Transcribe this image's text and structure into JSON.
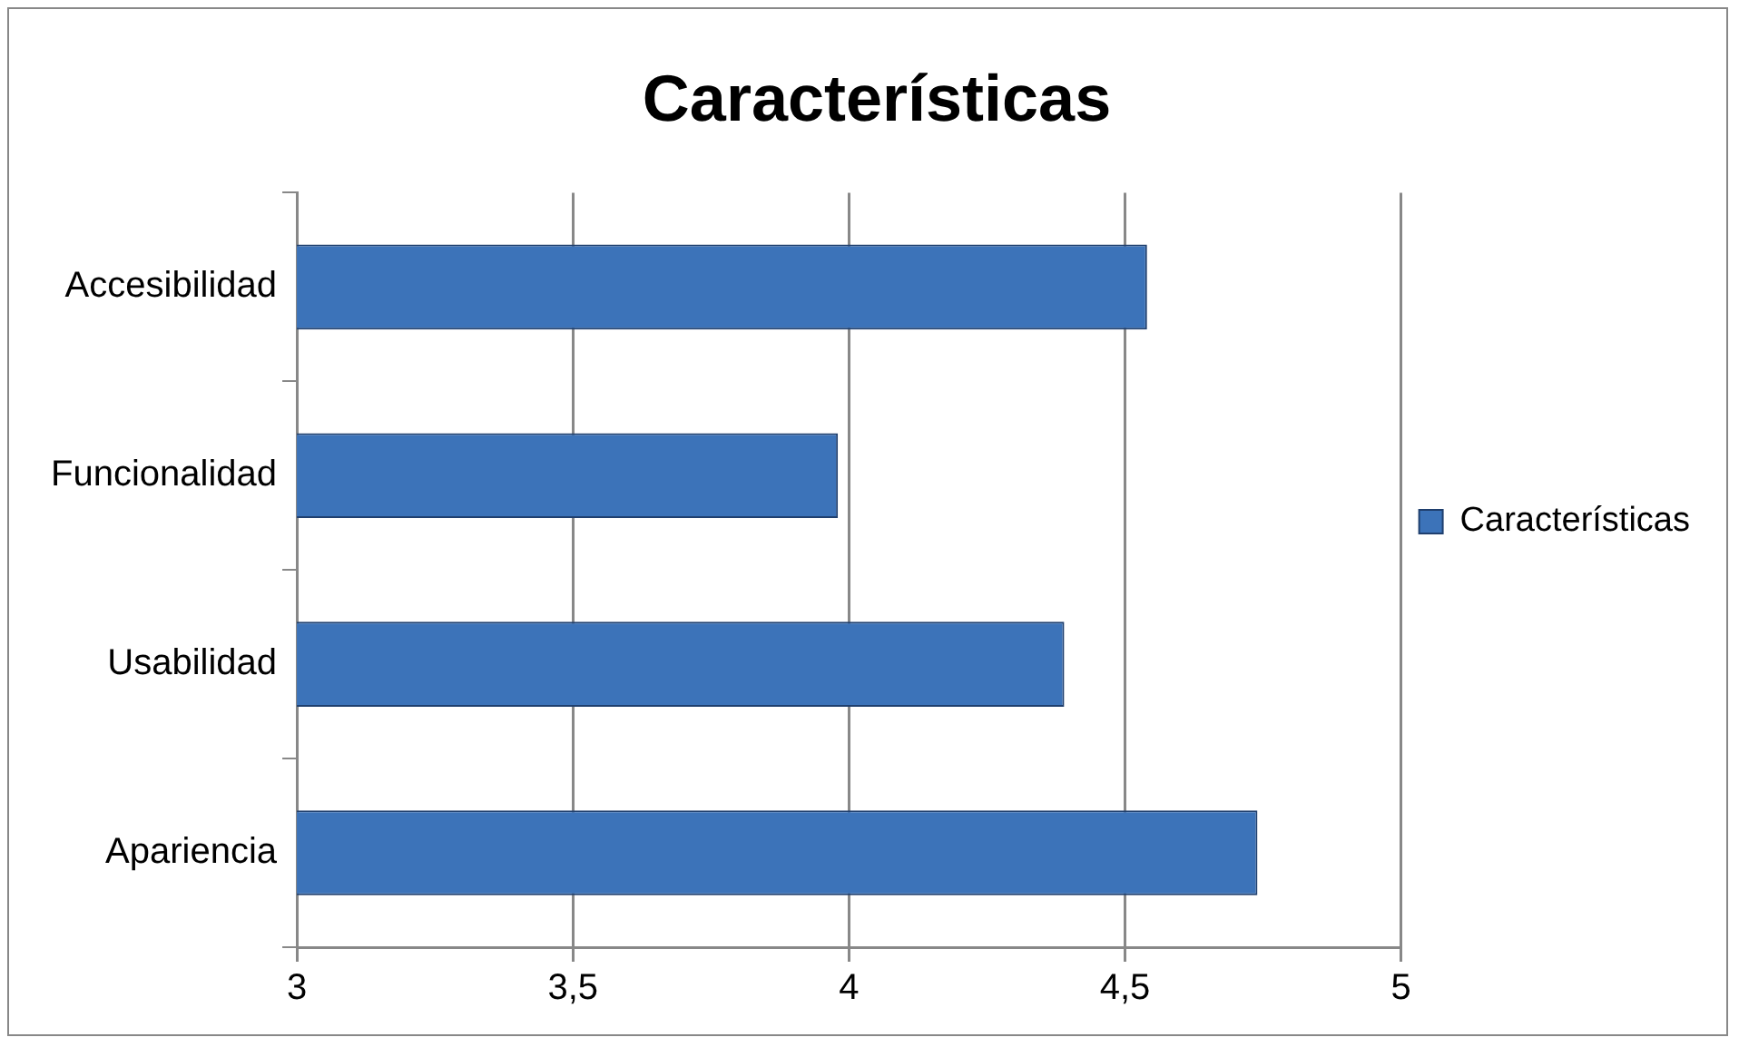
{
  "chart_data": {
    "type": "bar",
    "orientation": "horizontal",
    "title": "Características",
    "categories": [
      "Accesibilidad",
      "Funcionalidad",
      "Usabilidad",
      "Apariencia"
    ],
    "series": [
      {
        "name": "Características",
        "color": "#3c73b9",
        "values": [
          4.54,
          3.98,
          4.39,
          4.74
        ]
      }
    ],
    "xlim": [
      3,
      5
    ],
    "xticks": [
      3,
      {
        "value": 3.5,
        "label": "3,5"
      },
      4,
      {
        "value": 4.5,
        "label": "4,5"
      },
      5
    ],
    "grid": "x",
    "legend": "right"
  }
}
